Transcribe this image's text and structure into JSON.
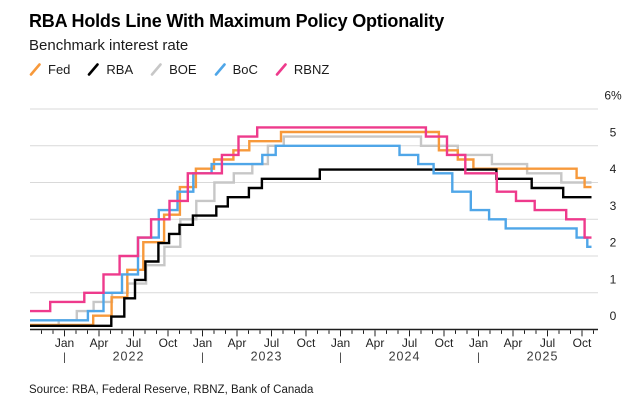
{
  "chart_data": {
    "type": "line",
    "subtype": "step",
    "title": "RBA Holds Line With Maximum Policy Optionality",
    "subtitle": "Benchmark interest rate",
    "source": "Source: RBA, Federal Reserve, RBNZ, Bank of Canada",
    "ylabel": "",
    "xlabel": "",
    "ylim": [
      0,
      6
    ],
    "y_tick_values": [
      0,
      1,
      2,
      3,
      4,
      5,
      6
    ],
    "y_tick_labels": [
      "0",
      "1",
      "2",
      "3",
      "4",
      "5",
      "6%"
    ],
    "x_start": "2021-10-01",
    "x_end": "2025-10-26",
    "x_quarter_labels": [
      "Jan",
      "Apr",
      "Jul",
      "Oct"
    ],
    "x_years": [
      "2022",
      "2023",
      "2024",
      "2025"
    ],
    "grid": "horizontal",
    "legend_position": "top-left",
    "colors": {
      "grid": "#d9d9d9",
      "axis": "#1f1f1f",
      "tick_text": "#1f1f1f",
      "year_text": "#3c3c3c",
      "background": "#ffffff"
    },
    "series": [
      {
        "name": "Fed",
        "color": "#F7993B",
        "z": 2,
        "points": [
          [
            "2021-10-01",
            0.125
          ],
          [
            "2022-03-16",
            0.375
          ],
          [
            "2022-05-04",
            0.875
          ],
          [
            "2022-06-15",
            1.625
          ],
          [
            "2022-07-27",
            2.375
          ],
          [
            "2022-09-21",
            3.125
          ],
          [
            "2022-11-02",
            3.875
          ],
          [
            "2022-12-14",
            4.375
          ],
          [
            "2023-02-01",
            4.625
          ],
          [
            "2023-03-22",
            4.875
          ],
          [
            "2023-05-03",
            5.125
          ],
          [
            "2023-07-26",
            5.375
          ],
          [
            "2024-09-18",
            4.875
          ],
          [
            "2024-11-07",
            4.625
          ],
          [
            "2024-12-18",
            4.375
          ],
          [
            "2025-09-17",
            4.125
          ],
          [
            "2025-10-08",
            3.875
          ]
        ]
      },
      {
        "name": "RBA",
        "color": "#000000",
        "z": 3,
        "points": [
          [
            "2021-10-01",
            0.1
          ],
          [
            "2022-05-03",
            0.35
          ],
          [
            "2022-06-07",
            0.85
          ],
          [
            "2022-07-05",
            1.35
          ],
          [
            "2022-08-02",
            1.85
          ],
          [
            "2022-09-06",
            2.35
          ],
          [
            "2022-10-04",
            2.6
          ],
          [
            "2022-11-01",
            2.85
          ],
          [
            "2022-12-06",
            3.1
          ],
          [
            "2023-02-07",
            3.35
          ],
          [
            "2023-03-07",
            3.6
          ],
          [
            "2023-05-02",
            3.85
          ],
          [
            "2023-06-06",
            4.1
          ],
          [
            "2023-11-07",
            4.35
          ],
          [
            "2025-02-18",
            4.1
          ],
          [
            "2025-05-20",
            3.85
          ],
          [
            "2025-08-12",
            3.6
          ]
        ]
      },
      {
        "name": "BOE",
        "color": "#C7C7C7",
        "z": 1,
        "points": [
          [
            "2021-10-01",
            0.1
          ],
          [
            "2021-12-16",
            0.25
          ],
          [
            "2022-02-03",
            0.5
          ],
          [
            "2022-03-17",
            0.75
          ],
          [
            "2022-05-05",
            1.0
          ],
          [
            "2022-06-16",
            1.25
          ],
          [
            "2022-08-04",
            1.75
          ],
          [
            "2022-09-22",
            2.25
          ],
          [
            "2022-11-03",
            3.0
          ],
          [
            "2022-12-15",
            3.5
          ],
          [
            "2023-02-02",
            4.0
          ],
          [
            "2023-03-23",
            4.25
          ],
          [
            "2023-05-11",
            4.5
          ],
          [
            "2023-06-22",
            5.0
          ],
          [
            "2023-08-03",
            5.25
          ],
          [
            "2024-08-01",
            5.0
          ],
          [
            "2024-11-07",
            4.75
          ],
          [
            "2025-02-06",
            4.5
          ],
          [
            "2025-05-08",
            4.25
          ],
          [
            "2025-08-07",
            4.0
          ]
        ]
      },
      {
        "name": "BoC",
        "color": "#4FA6E8",
        "z": 4,
        "points": [
          [
            "2021-10-01",
            0.25
          ],
          [
            "2022-03-02",
            0.5
          ],
          [
            "2022-04-13",
            1.0
          ],
          [
            "2022-06-01",
            1.5
          ],
          [
            "2022-07-13",
            2.5
          ],
          [
            "2022-09-07",
            3.25
          ],
          [
            "2022-10-26",
            3.75
          ],
          [
            "2022-12-07",
            4.25
          ],
          [
            "2023-01-25",
            4.5
          ],
          [
            "2023-06-07",
            4.75
          ],
          [
            "2023-07-12",
            5.0
          ],
          [
            "2024-06-05",
            4.75
          ],
          [
            "2024-07-24",
            4.5
          ],
          [
            "2024-09-04",
            4.25
          ],
          [
            "2024-10-23",
            3.75
          ],
          [
            "2024-12-11",
            3.25
          ],
          [
            "2025-01-29",
            3.0
          ],
          [
            "2025-03-12",
            2.75
          ],
          [
            "2025-09-17",
            2.5
          ],
          [
            "2025-10-15",
            2.25
          ]
        ]
      },
      {
        "name": "RBNZ",
        "color": "#EE3A8C",
        "z": 5,
        "points": [
          [
            "2021-10-01",
            0.5
          ],
          [
            "2021-11-24",
            0.75
          ],
          [
            "2022-02-23",
            1.0
          ],
          [
            "2022-04-13",
            1.5
          ],
          [
            "2022-05-25",
            2.0
          ],
          [
            "2022-07-13",
            2.5
          ],
          [
            "2022-08-17",
            3.0
          ],
          [
            "2022-10-05",
            3.5
          ],
          [
            "2022-11-23",
            4.25
          ],
          [
            "2023-02-22",
            4.75
          ],
          [
            "2023-04-05",
            5.25
          ],
          [
            "2023-05-24",
            5.5
          ],
          [
            "2024-08-14",
            5.25
          ],
          [
            "2024-10-09",
            4.75
          ],
          [
            "2024-11-27",
            4.25
          ],
          [
            "2025-02-19",
            3.75
          ],
          [
            "2025-04-09",
            3.5
          ],
          [
            "2025-05-28",
            3.25
          ],
          [
            "2025-08-20",
            3.0
          ],
          [
            "2025-10-08",
            2.5
          ]
        ]
      }
    ]
  }
}
